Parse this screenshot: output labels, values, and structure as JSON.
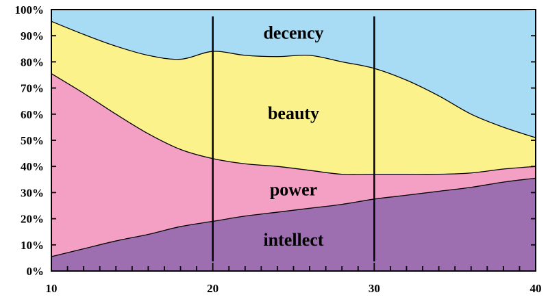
{
  "chart_data": {
    "type": "area",
    "stacked_percent": true,
    "x": [
      10,
      12,
      14,
      16,
      18,
      20,
      22,
      24,
      26,
      28,
      30,
      32,
      34,
      36,
      38,
      40
    ],
    "xlim": [
      10,
      40
    ],
    "ylim": [
      0,
      100
    ],
    "x_ticks": [
      "10",
      "20",
      "30",
      "40"
    ],
    "y_ticks": [
      "0%",
      "10%",
      "20%",
      "30%",
      "40%",
      "50%",
      "60%",
      "70%",
      "80%",
      "90%",
      "100%"
    ],
    "vertical_lines_at": [
      20,
      30
    ],
    "grid": false,
    "series": [
      {
        "name": "intellect",
        "color": "#9d6fb0",
        "values": [
          5.5,
          8.5,
          11.5,
          14,
          17,
          19,
          21,
          22.5,
          24,
          25.5,
          27.5,
          29,
          30.5,
          32,
          34,
          35.5
        ]
      },
      {
        "name": "power",
        "color": "#f4a0c4",
        "values": [
          70,
          59.5,
          48.5,
          38.5,
          29.5,
          24,
          20,
          17.5,
          14.5,
          11.5,
          9.5,
          8,
          6.5,
          5.5,
          5,
          4.5
        ]
      },
      {
        "name": "beauty",
        "color": "#fbf28c",
        "values": [
          20,
          22.5,
          26,
          30,
          34.5,
          41,
          41.5,
          42,
          44,
          43,
          40.5,
          36,
          30,
          22.5,
          16,
          11
        ]
      },
      {
        "name": "decency",
        "color": "#a7dcf4",
        "values": [
          4.5,
          9.5,
          14,
          17.5,
          19,
          16,
          17.5,
          18,
          17.5,
          20,
          22.5,
          27,
          33,
          40,
          45,
          48.5
        ]
      }
    ]
  }
}
